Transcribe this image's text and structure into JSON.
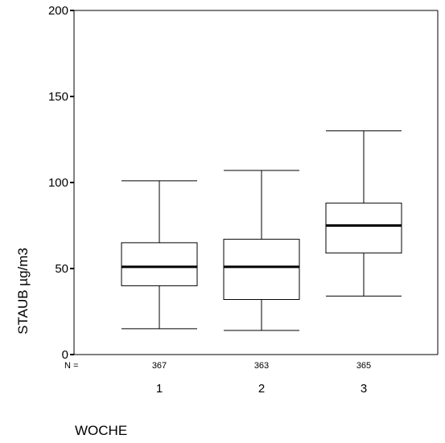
{
  "chart_data": {
    "type": "boxplot",
    "title": "",
    "xlabel": "WOCHE",
    "ylabel": "STAUB µg/m3",
    "ylim": [
      0,
      200
    ],
    "yticks": [
      0,
      50,
      100,
      150,
      200
    ],
    "n_label": "N =",
    "categories": [
      "1",
      "2",
      "3"
    ],
    "n_values": [
      "367",
      "363",
      "365"
    ],
    "boxes": [
      {
        "category": "1",
        "whisker_low": 15,
        "q1": 40,
        "median": 51,
        "q3": 65,
        "whisker_high": 101
      },
      {
        "category": "2",
        "whisker_low": 14,
        "q1": 32,
        "median": 51,
        "q3": 67,
        "whisker_high": 107
      },
      {
        "category": "3",
        "whisker_low": 34,
        "q1": 59,
        "median": 75,
        "q3": 88,
        "whisker_high": 130
      }
    ],
    "grid": false
  }
}
